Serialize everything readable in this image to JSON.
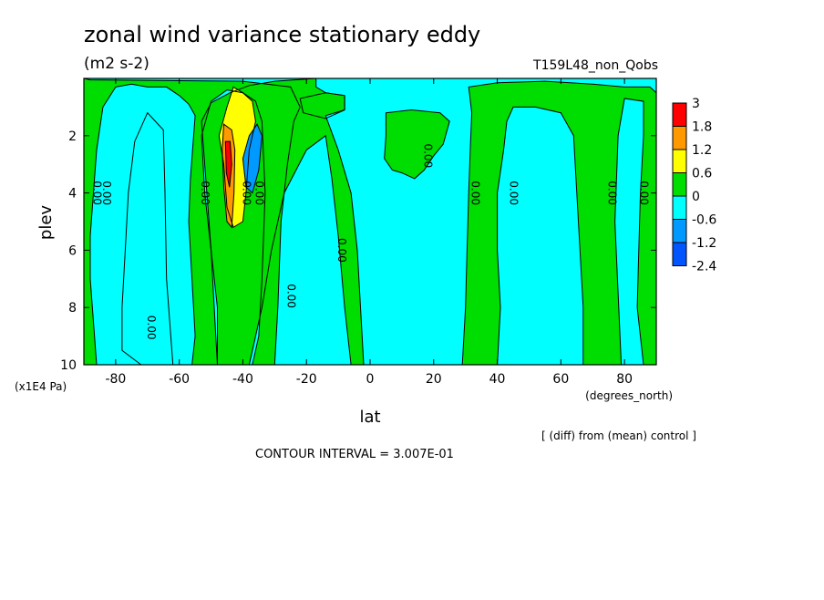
{
  "chart_data": {
    "type": "heatmap",
    "title": "zonal wind variance stationary eddy",
    "units": "(m2 s-2)",
    "run_label": "T159L48_non_Qobs",
    "xlabel": "lat",
    "x_units": "(degrees_north)",
    "ylabel": "plev",
    "y_units": "(x1E4 Pa)",
    "xlim": [
      -90,
      90
    ],
    "ylim": [
      10,
      0
    ],
    "x_ticks": [
      "-80",
      "-60",
      "-40",
      "-20",
      "0",
      "20",
      "40",
      "60",
      "80"
    ],
    "x_tick_values": [
      -80,
      -60,
      -40,
      -20,
      0,
      20,
      40,
      60,
      80
    ],
    "y_ticks": [
      "2",
      "4",
      "6",
      "8",
      "10"
    ],
    "y_tick_values": [
      2,
      4,
      6,
      8,
      10
    ],
    "contour_line_label": "0.00",
    "diff_note": "[ (diff) from (mean) control ]",
    "contour_interval": "CONTOUR INTERVAL = 3.007E-01",
    "colorbar": {
      "labels": [
        "3",
        "1.8",
        "1.2",
        "0.6",
        "0",
        "-0.6",
        "-1.2",
        "-2.4"
      ],
      "colors": [
        "#ff0000",
        "#ff9900",
        "#ffff00",
        "#00dd00",
        "#00ffff",
        "#0099ff",
        "#0055ff"
      ]
    },
    "regions": [
      {
        "class": 3,
        "polygon": [
          [
            -90,
            0
          ],
          [
            -90,
            10
          ],
          [
            -86,
            10
          ],
          [
            -88,
            7
          ],
          [
            -88,
            5.5
          ],
          [
            -87,
            4
          ],
          [
            -86,
            2.5
          ],
          [
            -84,
            1
          ],
          [
            -80,
            0.3
          ],
          [
            -75,
            0.2
          ],
          [
            -70,
            0.3
          ],
          [
            -64,
            0.3
          ],
          [
            -60,
            0.6
          ],
          [
            -57,
            0.9
          ],
          [
            -55,
            1.3
          ],
          [
            -56.5,
            3.5
          ],
          [
            -57,
            5
          ],
          [
            -56,
            7
          ],
          [
            -55,
            9
          ],
          [
            -56,
            10
          ],
          [
            -48,
            10
          ],
          [
            -49,
            8
          ],
          [
            -50,
            6
          ],
          [
            -52,
            4
          ],
          [
            -53,
            2
          ],
          [
            -50,
            0.8
          ],
          [
            -45,
            0.4
          ],
          [
            -40,
            0.5
          ],
          [
            -36,
            0.8
          ],
          [
            -34,
            1.5
          ],
          [
            -33,
            4
          ],
          [
            -34,
            7
          ],
          [
            -35,
            9
          ],
          [
            -37,
            10
          ],
          [
            -30,
            10
          ],
          [
            -29,
            8
          ],
          [
            -28,
            5
          ],
          [
            -26,
            3
          ],
          [
            -24,
            1.5
          ],
          [
            -22,
            1
          ],
          [
            -25,
            0.3
          ],
          [
            -40,
            0.1
          ],
          [
            -88,
            0.05
          ]
        ]
      },
      {
        "class": 4,
        "polygon": [
          [
            -72,
            10
          ],
          [
            -78,
            9.5
          ],
          [
            -78,
            8
          ],
          [
            -77,
            6
          ],
          [
            -76,
            4
          ],
          [
            -74,
            2.2
          ],
          [
            -70,
            1.2
          ],
          [
            -65,
            1.8
          ],
          [
            -64.5,
            4
          ],
          [
            -64,
            7
          ],
          [
            -62,
            10
          ]
        ]
      },
      {
        "class": 4,
        "polygon": [
          [
            -21,
            1.2
          ],
          [
            -14,
            1.4
          ],
          [
            -8,
            1.1
          ],
          [
            -8,
            0.6
          ],
          [
            -14,
            0.5
          ],
          [
            -22,
            0.7
          ]
        ]
      },
      {
        "class": 3,
        "polygon": [
          [
            -17,
            0
          ],
          [
            -30,
            0.1
          ],
          [
            -38,
            0.25
          ],
          [
            -44,
            0.5
          ],
          [
            -50,
            0.85
          ],
          [
            -53,
            1.5
          ],
          [
            -52,
            3
          ],
          [
            -50,
            6
          ],
          [
            -48,
            8
          ],
          [
            -48,
            10
          ],
          [
            -38,
            10
          ],
          [
            -34,
            8
          ],
          [
            -31,
            6
          ],
          [
            -27,
            4
          ],
          [
            -20,
            2.5
          ],
          [
            -14,
            2
          ],
          [
            -12,
            3.5
          ],
          [
            -10,
            5.5
          ],
          [
            -8,
            8
          ],
          [
            -6,
            10
          ],
          [
            -2,
            10
          ],
          [
            -3,
            8
          ],
          [
            -4,
            6
          ],
          [
            -6,
            4
          ],
          [
            -10,
            2.5
          ],
          [
            -14,
            1.3
          ],
          [
            -8,
            1.1
          ],
          [
            -8,
            0.6
          ],
          [
            -14,
            0.5
          ],
          [
            -17,
            0.3
          ]
        ]
      },
      {
        "class": 2,
        "polygon": [
          [
            -43,
            0.3
          ],
          [
            -40,
            0.5
          ],
          [
            -37,
            0.8
          ],
          [
            -36,
            1.5
          ],
          [
            -38,
            2.5
          ],
          [
            -39,
            4
          ],
          [
            -40,
            5
          ],
          [
            -43,
            5.2
          ],
          [
            -45,
            4.5
          ],
          [
            -46,
            3
          ],
          [
            -47.5,
            2
          ],
          [
            -45,
            1
          ]
        ]
      },
      {
        "class": 1,
        "polygon": [
          [
            -46,
            1.6
          ],
          [
            -43.5,
            1.8
          ],
          [
            -42.5,
            2.5
          ],
          [
            -42.8,
            4
          ],
          [
            -43.5,
            5.2
          ],
          [
            -45,
            5
          ],
          [
            -46,
            3.8
          ],
          [
            -46.5,
            2.5
          ]
        ]
      },
      {
        "class": 0,
        "polygon": [
          [
            -45.5,
            2.2
          ],
          [
            -44,
            2.2
          ],
          [
            -43.5,
            3
          ],
          [
            -44.2,
            3.8
          ],
          [
            -45.2,
            3.3
          ]
        ]
      },
      {
        "class": 5,
        "polygon": [
          [
            -40,
            2.8
          ],
          [
            -38,
            2
          ],
          [
            -35.5,
            1.6
          ],
          [
            -34,
            2
          ],
          [
            -35,
            3.2
          ],
          [
            -37,
            4.0
          ],
          [
            -39,
            3.8
          ]
        ]
      },
      {
        "class": 3,
        "polygon": [
          [
            5,
            1.2
          ],
          [
            13,
            1.1
          ],
          [
            22,
            1.2
          ],
          [
            25,
            1.5
          ],
          [
            23,
            2.3
          ],
          [
            20,
            2.7
          ],
          [
            17,
            3.2
          ],
          [
            14,
            3.5
          ],
          [
            10,
            3.3
          ],
          [
            7,
            3.2
          ],
          [
            4.5,
            2.8
          ],
          [
            5,
            2
          ]
        ]
      },
      {
        "class": 3,
        "polygon": [
          [
            29,
            10
          ],
          [
            30,
            8
          ],
          [
            30.5,
            6
          ],
          [
            31,
            4
          ],
          [
            31.5,
            2.5
          ],
          [
            32,
            1.2
          ],
          [
            31,
            0.3
          ],
          [
            40,
            0.15
          ],
          [
            55,
            0.1
          ],
          [
            70,
            0.2
          ],
          [
            80,
            0.3
          ],
          [
            88,
            0.3
          ],
          [
            90,
            0.5
          ],
          [
            90,
            10
          ],
          [
            86,
            10
          ],
          [
            84,
            8
          ],
          [
            84.5,
            6
          ],
          [
            85,
            4
          ],
          [
            86,
            2
          ],
          [
            86,
            0.8
          ],
          [
            80,
            0.7
          ],
          [
            78,
            2
          ],
          [
            77,
            5
          ],
          [
            79,
            10
          ],
          [
            67,
            10
          ],
          [
            67,
            8
          ],
          [
            66,
            6
          ],
          [
            65,
            4
          ],
          [
            64,
            2
          ],
          [
            60,
            1.2
          ],
          [
            52,
            1.0
          ],
          [
            45,
            1.0
          ],
          [
            43,
            1.5
          ],
          [
            42,
            2.5
          ],
          [
            40,
            4
          ],
          [
            40,
            6
          ],
          [
            41,
            8
          ],
          [
            40,
            10
          ]
        ]
      }
    ]
  }
}
